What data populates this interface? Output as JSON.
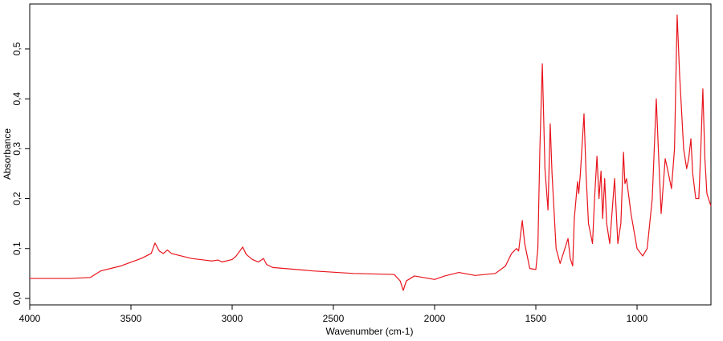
{
  "chart_data": {
    "type": "line",
    "x_label": "Wavenumber (cm-1)",
    "y_label": "Absorbance",
    "color": "#e8141c",
    "x": [
      4000,
      3800,
      3700,
      3650,
      3550,
      3450,
      3400,
      3381,
      3360,
      3340,
      3320,
      3300,
      3200,
      3100,
      3070,
      3050,
      3000,
      2980,
      2948,
      2930,
      2900,
      2870,
      2845,
      2830,
      2800,
      2600,
      2400,
      2200,
      2170,
      2155,
      2140,
      2100,
      2000,
      1950,
      1880,
      1800,
      1700,
      1650,
      1620,
      1595,
      1585,
      1567,
      1555,
      1530,
      1500,
      1490,
      1480,
      1468,
      1455,
      1440,
      1429,
      1420,
      1400,
      1380,
      1341,
      1330,
      1318,
      1310,
      1294,
      1288,
      1280,
      1262,
      1252,
      1240,
      1220,
      1210,
      1198,
      1188,
      1178,
      1170,
      1160,
      1150,
      1135,
      1111,
      1095,
      1080,
      1067,
      1060,
      1052,
      1030,
      1000,
      972,
      950,
      925,
      905,
      895,
      881,
      861,
      850,
      830,
      815,
      802,
      790,
      770,
      755,
      745,
      734,
      725,
      710,
      695,
      685,
      675,
      665,
      655,
      635
    ],
    "values": [
      0.04,
      0.04,
      0.042,
      0.055,
      0.065,
      0.08,
      0.09,
      0.111,
      0.095,
      0.09,
      0.097,
      0.09,
      0.08,
      0.075,
      0.077,
      0.073,
      0.078,
      0.085,
      0.103,
      0.088,
      0.078,
      0.073,
      0.08,
      0.068,
      0.062,
      0.055,
      0.05,
      0.048,
      0.035,
      0.016,
      0.035,
      0.045,
      0.038,
      0.045,
      0.052,
      0.046,
      0.05,
      0.065,
      0.09,
      0.1,
      0.095,
      0.156,
      0.11,
      0.06,
      0.058,
      0.1,
      0.3,
      0.47,
      0.26,
      0.177,
      0.35,
      0.25,
      0.1,
      0.07,
      0.12,
      0.08,
      0.065,
      0.16,
      0.234,
      0.21,
      0.25,
      0.37,
      0.25,
      0.15,
      0.11,
      0.2,
      0.285,
      0.2,
      0.255,
      0.16,
      0.24,
      0.15,
      0.11,
      0.24,
      0.11,
      0.15,
      0.293,
      0.23,
      0.24,
      0.17,
      0.1,
      0.085,
      0.1,
      0.2,
      0.4,
      0.3,
      0.17,
      0.28,
      0.26,
      0.22,
      0.3,
      0.568,
      0.45,
      0.3,
      0.26,
      0.28,
      0.32,
      0.25,
      0.2,
      0.2,
      0.3,
      0.42,
      0.28,
      0.21,
      0.185
    ],
    "xlim": [
      4000,
      635
    ],
    "xticks": [
      4000,
      3500,
      3000,
      2500,
      2000,
      1500,
      1000
    ],
    "ylim": [
      -0.013,
      0.59
    ],
    "yticks": [
      {
        "value": 0,
        "label": "0,0"
      },
      {
        "value": 0.1,
        "label": "0,1"
      },
      {
        "value": 0.2,
        "label": "0,2"
      },
      {
        "value": 0.3,
        "label": "0,3"
      },
      {
        "value": 0.4,
        "label": "0,4"
      },
      {
        "value": 0.5,
        "label": "0,5"
      }
    ]
  }
}
